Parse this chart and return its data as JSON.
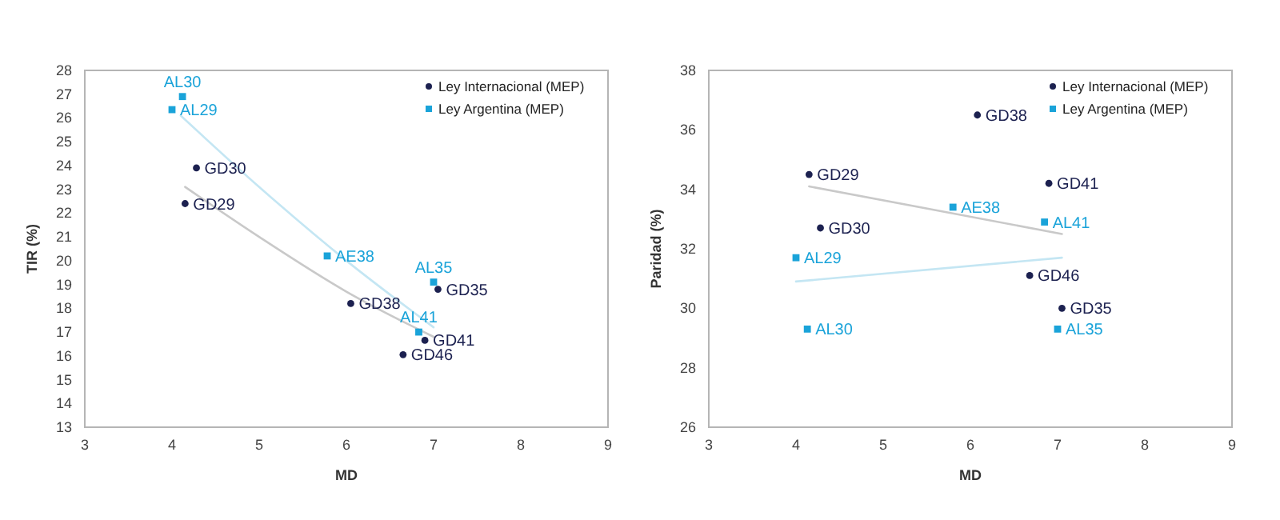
{
  "chart_data": [
    {
      "type": "scatter",
      "xlabel": "MD",
      "ylabel": "TIR (%)",
      "xlim": [
        3,
        9
      ],
      "xticks": [
        3,
        4,
        5,
        6,
        7,
        8,
        9
      ],
      "ylim": [
        13,
        28
      ],
      "yticks": [
        13,
        14,
        15,
        16,
        17,
        18,
        19,
        20,
        21,
        22,
        23,
        24,
        25,
        26,
        27,
        28
      ],
      "grid": false,
      "legend": "top right",
      "series": [
        {
          "name": "Ley Internacional (MEP)",
          "color": "#1c2150",
          "marker": "circle",
          "x": [
            4.15,
            4.28,
            6.05,
            6.65,
            6.9,
            7.05
          ],
          "values": [
            22.4,
            23.9,
            18.2,
            16.05,
            16.65,
            18.8
          ],
          "value_labels": [
            "GD29",
            "GD30",
            "GD38",
            "GD46",
            "GD41",
            "GD35"
          ]
        },
        {
          "name": "Ley Argentina (MEP)",
          "color": "#1aa3d9",
          "marker": "square",
          "x": [
            4.0,
            4.12,
            5.78,
            6.83,
            7.0
          ],
          "values": [
            26.35,
            26.9,
            20.2,
            17.0,
            19.1
          ],
          "value_labels": [
            "AL29",
            "AL30",
            "AE38",
            "AL41",
            "AL35"
          ]
        },
        {
          "type": "line",
          "color": "#c9c9c9",
          "x": [
            4.15,
            5,
            6,
            7
          ],
          "values": [
            23.1,
            21.0,
            18.7,
            16.8
          ]
        },
        {
          "type": "line",
          "color": "#c4e6f3",
          "x": [
            4.1,
            5,
            6,
            7
          ],
          "values": [
            26.1,
            23.1,
            20.0,
            17.2
          ]
        }
      ]
    },
    {
      "type": "scatter",
      "xlabel": "MD",
      "ylabel": "Paridad (%)",
      "xlim": [
        3,
        9
      ],
      "xticks": [
        3,
        4,
        5,
        6,
        7,
        8,
        9
      ],
      "ylim": [
        26,
        38
      ],
      "yticks": [
        26,
        28,
        30,
        32,
        34,
        36,
        38
      ],
      "grid": false,
      "legend": "top right",
      "series": [
        {
          "name": "Ley Internacional (MEP)",
          "color": "#1c2150",
          "marker": "circle",
          "x": [
            4.15,
            4.28,
            6.08,
            6.9,
            6.68,
            7.05
          ],
          "values": [
            34.5,
            32.7,
            36.5,
            34.2,
            31.1,
            30.0
          ],
          "value_labels": [
            "GD29",
            "GD30",
            "GD38",
            "GD41",
            "GD46",
            "GD35"
          ]
        },
        {
          "name": "Ley Argentina (MEP)",
          "color": "#1aa3d9",
          "marker": "square",
          "x": [
            4.0,
            4.13,
            5.8,
            6.85,
            7.0
          ],
          "values": [
            31.7,
            29.3,
            33.4,
            32.9,
            29.3
          ],
          "value_labels": [
            "AL29",
            "AL30",
            "AE38",
            "AL41",
            "AL35"
          ]
        },
        {
          "type": "line",
          "color": "#c9c9c9",
          "x": [
            4.15,
            7.05
          ],
          "values": [
            34.1,
            32.5
          ]
        },
        {
          "type": "line",
          "color": "#c4e6f3",
          "x": [
            4.0,
            7.05
          ],
          "values": [
            30.9,
            31.7
          ]
        }
      ]
    }
  ]
}
